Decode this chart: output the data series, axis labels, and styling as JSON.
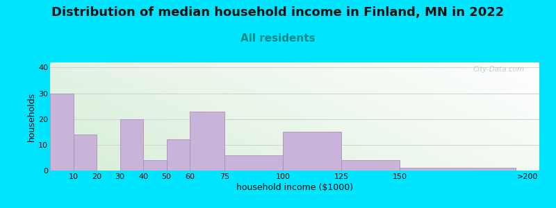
{
  "title": "Distribution of median household income in Finland, MN in 2022",
  "subtitle": "All residents",
  "xlabel": "household income ($1000)",
  "ylabel": "households",
  "bar_labels": [
    "10",
    "20",
    "30",
    "40",
    "50",
    "60",
    "75",
    "100",
    "125",
    "150",
    ">200"
  ],
  "bar_values": [
    30,
    14,
    0,
    20,
    4,
    12,
    23,
    6,
    15,
    4,
    1
  ],
  "bar_lefts": [
    0,
    10,
    20,
    30,
    40,
    50,
    60,
    75,
    100,
    125,
    150
  ],
  "bar_rights": [
    10,
    20,
    30,
    40,
    50,
    60,
    75,
    100,
    125,
    150,
    200
  ],
  "bar_color": "#c8b4d8",
  "bar_edge_color": "#a890b8",
  "ylim": [
    0,
    42
  ],
  "yticks": [
    0,
    10,
    20,
    30,
    40
  ],
  "xlim": [
    0,
    210
  ],
  "xtick_positions": [
    10,
    20,
    30,
    40,
    50,
    60,
    75,
    100,
    125,
    150,
    205
  ],
  "bg_outer": "#00e5ff",
  "grad_left": "#d8eed8",
  "grad_right": "#f8f8f8",
  "title_fontsize": 13,
  "subtitle_fontsize": 11,
  "subtitle_color": "#008888",
  "watermark_text": "City-Data.com",
  "watermark_color": "#b8c4c8",
  "grid_color": "#d0d0d0",
  "axis_label_fontsize": 9,
  "tick_fontsize": 8
}
